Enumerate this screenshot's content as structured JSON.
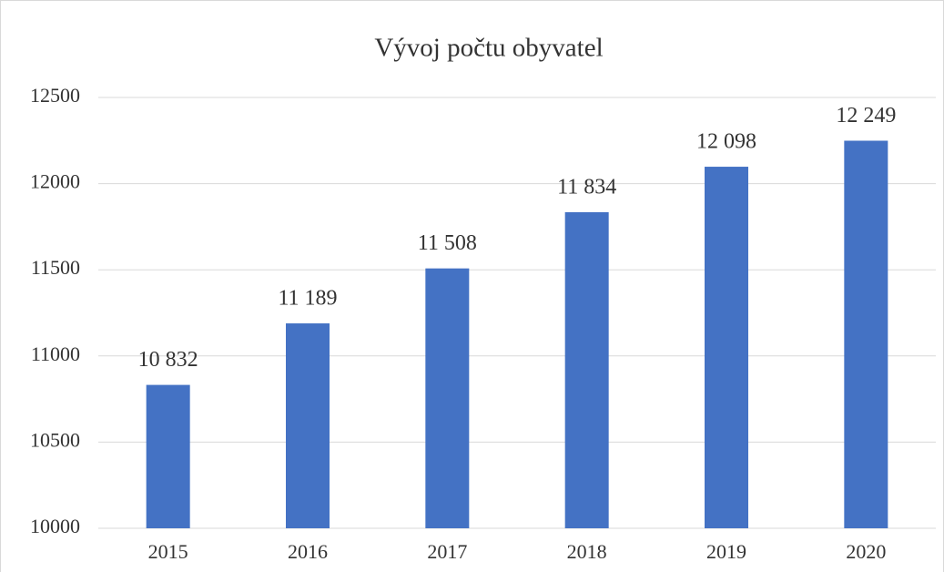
{
  "chart_data": {
    "type": "bar",
    "title": "Vývoj počtu obyvatel",
    "categories": [
      "2015",
      "2016",
      "2017",
      "2018",
      "2019",
      "2020"
    ],
    "values": [
      10832,
      11189,
      11508,
      11834,
      12098,
      12249
    ],
    "value_labels": [
      "10 832",
      "11 189",
      "11 508",
      "11 834",
      "12 098",
      "12 249"
    ],
    "color": "#4472c4",
    "ylim": [
      10000,
      12500
    ],
    "yticks": [
      10000,
      10500,
      11000,
      11500,
      12000,
      12500
    ],
    "grid": true
  }
}
